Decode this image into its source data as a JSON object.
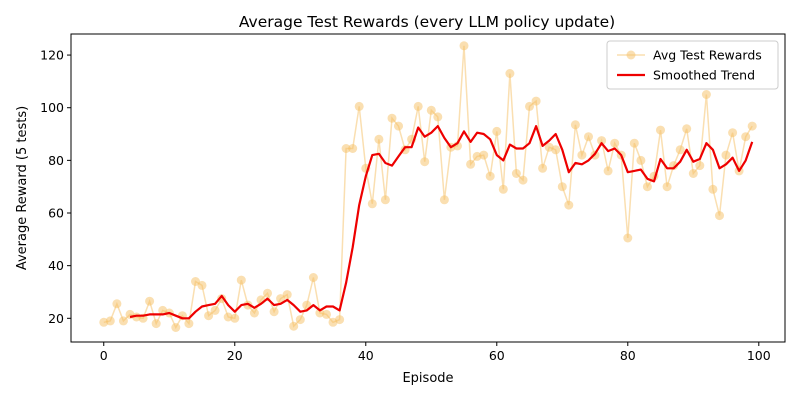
{
  "chart_data": {
    "type": "line",
    "title": "Average Test Rewards (every LLM policy update)",
    "xlabel": "Episode",
    "ylabel": "Average Reward (5 tests)",
    "xlim": [
      -5,
      104
    ],
    "ylim": [
      11,
      128
    ],
    "xticks": [
      0,
      20,
      40,
      60,
      80,
      100
    ],
    "yticks": [
      20,
      40,
      60,
      80,
      100,
      120
    ],
    "grid": false,
    "legend_position": "top-right",
    "series": [
      {
        "name": "Avg Test Rewards",
        "color": "#f5c064",
        "style": "line-with-markers",
        "x": [
          0,
          1,
          2,
          3,
          4,
          5,
          6,
          7,
          8,
          9,
          10,
          11,
          12,
          13,
          14,
          15,
          16,
          17,
          18,
          19,
          20,
          21,
          22,
          23,
          24,
          25,
          26,
          27,
          28,
          29,
          30,
          31,
          32,
          33,
          34,
          35,
          36,
          37,
          38,
          39,
          40,
          41,
          42,
          43,
          44,
          45,
          46,
          47,
          48,
          49,
          50,
          51,
          52,
          53,
          54,
          55,
          56,
          57,
          58,
          59,
          60,
          61,
          62,
          63,
          64,
          65,
          66,
          67,
          68,
          69,
          70,
          71,
          72,
          73,
          74,
          75,
          76,
          77,
          78,
          79,
          80,
          81,
          82,
          83,
          84,
          85,
          86,
          87,
          88,
          89,
          90,
          91,
          92,
          93,
          94,
          95,
          96,
          97,
          98,
          99
        ],
        "y": [
          18.5,
          19,
          25.5,
          19,
          21.5,
          20.5,
          20,
          26.5,
          18,
          23,
          22,
          16.5,
          21,
          18,
          34,
          32.5,
          21,
          23,
          27.5,
          20.5,
          20,
          34.5,
          25,
          22,
          27,
          29.5,
          22.5,
          27.5,
          29,
          17,
          19.5,
          25,
          35.5,
          22,
          21.5,
          18.5,
          19.5,
          84.5,
          84.5,
          100.5,
          77,
          63.5,
          88,
          65,
          96,
          93,
          84,
          88,
          100.5,
          79.5,
          99,
          96.5,
          65,
          85,
          85.5,
          123.5,
          78.5,
          81.5,
          82,
          74,
          91,
          69,
          113,
          75,
          72.5,
          100.5,
          102.5,
          77,
          85,
          84,
          70,
          63,
          93.5,
          82,
          89,
          82,
          87.5,
          76,
          86.5,
          82,
          50.5,
          86.5,
          80,
          70,
          74,
          91.5,
          70,
          78,
          84,
          92,
          75,
          78,
          105,
          69,
          59,
          82,
          90.5,
          76,
          89,
          93
        ]
      },
      {
        "name": "Smoothed Trend",
        "color": "#ee0000",
        "style": "line",
        "x": [
          4,
          5,
          6,
          7,
          8,
          9,
          10,
          11,
          12,
          13,
          14,
          15,
          16,
          17,
          18,
          19,
          20,
          21,
          22,
          23,
          24,
          25,
          26,
          27,
          28,
          29,
          30,
          31,
          32,
          33,
          34,
          35,
          36,
          37,
          38,
          39,
          40,
          41,
          42,
          43,
          44,
          45,
          46,
          47,
          48,
          49,
          50,
          51,
          52,
          53,
          54,
          55,
          56,
          57,
          58,
          59,
          60,
          61,
          62,
          63,
          64,
          65,
          66,
          67,
          68,
          69,
          70,
          71,
          72,
          73,
          74,
          75,
          76,
          77,
          78,
          79,
          80,
          81,
          82,
          83,
          84,
          85,
          86,
          87,
          88,
          89,
          90,
          91,
          92,
          93,
          94,
          95,
          96,
          97,
          98,
          99
        ],
        "y": [
          20.5,
          21,
          21,
          21.5,
          21.5,
          21.5,
          22,
          21,
          20,
          20,
          22.5,
          24.5,
          25,
          25.5,
          28.5,
          25,
          22.5,
          25,
          25.5,
          24,
          25.5,
          27.5,
          25,
          25.5,
          27,
          25,
          22.5,
          23,
          25,
          23,
          24.5,
          24.5,
          23,
          33.5,
          47,
          63,
          74,
          82,
          82.5,
          79,
          78,
          81.5,
          85,
          85,
          92.5,
          89,
          90.5,
          93,
          88.5,
          85,
          86.5,
          91,
          87,
          90.5,
          90,
          88,
          82,
          80,
          86,
          84.5,
          84.5,
          86.5,
          93,
          85.5,
          87.5,
          90,
          84,
          75.5,
          79,
          78.5,
          80,
          82.5,
          86.5,
          83.5,
          84.5,
          82,
          75.5,
          76,
          76.5,
          73,
          72,
          80.5,
          77,
          77,
          79.5,
          84,
          79.5,
          80.5,
          86.5,
          84,
          77,
          78.5,
          81,
          76,
          80,
          87
        ]
      }
    ]
  }
}
